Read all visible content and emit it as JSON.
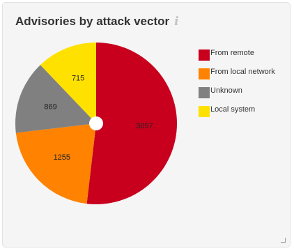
{
  "widget": {
    "title": "Advisories by attack vector",
    "info_icon": "info-icon"
  },
  "chart_data": {
    "type": "pie",
    "categories": [
      "From remote",
      "From local network",
      "Unknown",
      "Local system"
    ],
    "values": [
      3057,
      1255,
      869,
      715
    ],
    "colors": [
      "#c8001e",
      "#ff8200",
      "#808080",
      "#ffe100"
    ],
    "legend_position": "right",
    "start_angle": "top",
    "direction": "clockwise"
  }
}
